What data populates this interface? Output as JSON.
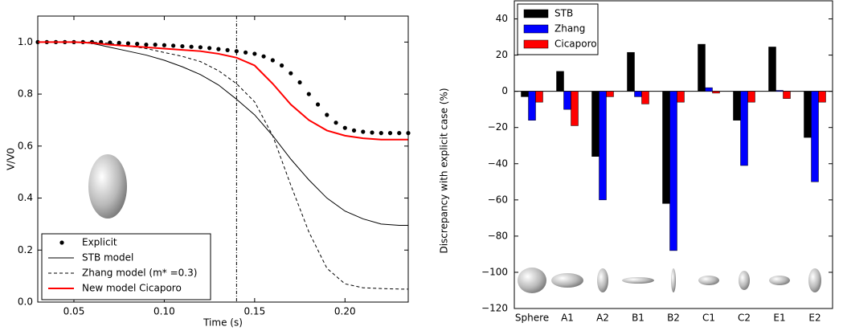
{
  "chart_data": [
    {
      "type": "line",
      "xlabel": "Time (s)",
      "ylabel": "V/V0",
      "xlim": [
        0.03,
        0.235
      ],
      "ylim": [
        0,
        1.1
      ],
      "xticks": [
        0.05,
        {
          "value": 0.1,
          "label": "0.10"
        },
        0.15,
        {
          "value": 0.2,
          "label": "0.20"
        }
      ],
      "yticks": [
        {
          "value": 0,
          "label": "0.0"
        },
        0.2,
        0.4,
        0.6,
        0.8,
        {
          "value": 1,
          "label": "1.0"
        }
      ],
      "vline": 0.14,
      "legend": "lower left",
      "x": [
        0.03,
        0.04,
        0.05,
        0.06,
        0.07,
        0.08,
        0.09,
        0.1,
        0.11,
        0.12,
        0.13,
        0.14,
        0.15,
        0.16,
        0.17,
        0.18,
        0.19,
        0.2,
        0.21,
        0.22,
        0.23,
        0.235
      ],
      "series": [
        {
          "name": "Explicit",
          "color": "#000000",
          "style": "dots",
          "x": [
            0.03,
            0.035,
            0.04,
            0.045,
            0.05,
            0.055,
            0.06,
            0.065,
            0.07,
            0.075,
            0.08,
            0.085,
            0.09,
            0.095,
            0.1,
            0.105,
            0.11,
            0.115,
            0.12,
            0.125,
            0.13,
            0.135,
            0.14,
            0.145,
            0.15,
            0.155,
            0.16,
            0.165,
            0.17,
            0.175,
            0.18,
            0.185,
            0.19,
            0.195,
            0.2,
            0.205,
            0.21,
            0.215,
            0.22,
            0.225,
            0.23,
            0.235
          ],
          "values": [
            1.0,
            1.0,
            1.0,
            1.0,
            1.0,
            1.0,
            1.0,
            1.0,
            0.998,
            0.997,
            0.995,
            0.993,
            0.99,
            0.99,
            0.988,
            0.986,
            0.984,
            0.982,
            0.98,
            0.977,
            0.973,
            0.969,
            0.965,
            0.96,
            0.955,
            0.945,
            0.93,
            0.91,
            0.88,
            0.845,
            0.8,
            0.76,
            0.72,
            0.69,
            0.67,
            0.66,
            0.655,
            0.652,
            0.65,
            0.65,
            0.65,
            0.65
          ]
        },
        {
          "name": "STB model",
          "color": "#000000",
          "style": "solid",
          "values": [
            1.0,
            1.0,
            1.0,
            0.995,
            0.98,
            0.965,
            0.95,
            0.93,
            0.905,
            0.875,
            0.835,
            0.78,
            0.72,
            0.64,
            0.55,
            0.47,
            0.4,
            0.35,
            0.32,
            0.3,
            0.295,
            0.295
          ]
        },
        {
          "name": "Zhang model (m* =0.3)",
          "color": "#000000",
          "style": "dashed",
          "values": [
            1.0,
            1.0,
            1.0,
            1.0,
            0.995,
            0.985,
            0.975,
            0.96,
            0.945,
            0.925,
            0.89,
            0.84,
            0.77,
            0.64,
            0.45,
            0.27,
            0.13,
            0.07,
            0.055,
            0.052,
            0.05,
            0.05
          ]
        },
        {
          "name": "New model Cicaporo",
          "color": "#ff0000",
          "style": "thick",
          "values": [
            1.0,
            1.0,
            1.0,
            0.997,
            0.99,
            0.985,
            0.98,
            0.975,
            0.97,
            0.965,
            0.955,
            0.94,
            0.91,
            0.84,
            0.76,
            0.7,
            0.66,
            0.64,
            0.63,
            0.625,
            0.625,
            0.625
          ]
        }
      ]
    },
    {
      "type": "bar",
      "ylabel": "Discrepancy with explicit case (%)",
      "ylim": [
        -120,
        50
      ],
      "yticks": [
        {
          "value": -120,
          "label": "−120"
        },
        {
          "value": -100,
          "label": "−100"
        },
        {
          "value": -80,
          "label": "−80"
        },
        {
          "value": -60,
          "label": "−60"
        },
        {
          "value": -40,
          "label": "−40"
        },
        {
          "value": -20,
          "label": "−20"
        },
        0,
        20,
        40
      ],
      "legend": "upper left",
      "categories": [
        "Sphere",
        "A1",
        "A2",
        "B1",
        "B2",
        "C1",
        "C2",
        "E1",
        "E2"
      ],
      "series": [
        {
          "name": "STB",
          "color": "#000000",
          "values": [
            -3,
            11,
            -36,
            21.5,
            -62,
            26,
            -16,
            24.5,
            -25.5
          ]
        },
        {
          "name": "Zhang",
          "color": "#0000ff",
          "values": [
            -16,
            -10,
            -60,
            -3,
            -88,
            2,
            -41,
            0.5,
            -50
          ]
        },
        {
          "name": "Cicaporo",
          "color": "#ff0000",
          "values": [
            -6,
            -19,
            -3,
            -7,
            -6,
            -1,
            -6,
            -4,
            -6
          ]
        }
      ]
    }
  ]
}
